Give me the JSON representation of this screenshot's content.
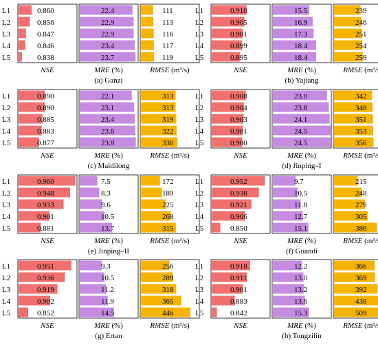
{
  "row_labels": [
    "L1",
    "L2",
    "L3",
    "L4",
    "L5"
  ],
  "metrics": [
    {
      "key": "nse",
      "label": "NSE",
      "unit": "",
      "color": "#f07070",
      "range": [
        0.83,
        0.962
      ]
    },
    {
      "key": "mre",
      "label": "MRE",
      "unit": "(%)",
      "color": "#c48be0",
      "range": [
        0,
        24.5
      ]
    },
    {
      "key": "rmse",
      "label": "RMSE",
      "unit": "(m³/s)",
      "color": "#f5b400",
      "range": [
        0,
        0
      ]
    }
  ],
  "chart_data": [
    {
      "type": "bar",
      "title": "(a) Ganzi",
      "categories": [
        "L1",
        "L2",
        "L3",
        "L4",
        "L5"
      ],
      "series": [
        {
          "name": "NSE",
          "values": [
            "0.860",
            "0.856",
            "0.847",
            "0.846",
            "0.838"
          ]
        },
        {
          "name": "MRE (%)",
          "values": [
            "22.4",
            "22.9",
            "22.9",
            "23.4",
            "23.7"
          ]
        },
        {
          "name": "RMSE (m³/s)",
          "values": [
            "111",
            "113",
            "116",
            "117",
            "119"
          ]
        }
      ]
    },
    {
      "type": "bar",
      "title": "(b) Yajiang",
      "categories": [
        "L1",
        "L2",
        "L3",
        "L4",
        "L5"
      ],
      "series": [
        {
          "name": "NSE",
          "values": [
            "0.910",
            "0.905",
            "0.901",
            "0.899",
            "0.895"
          ]
        },
        {
          "name": "MRE (%)",
          "values": [
            "15.5",
            "16.9",
            "17.3",
            "18.4",
            "18.4"
          ]
        },
        {
          "name": "RMSE (m³/s)",
          "values": [
            "239",
            "246",
            "251",
            "254",
            "259"
          ]
        }
      ]
    },
    {
      "type": "bar",
      "title": "(c) Maidilong",
      "categories": [
        "L1",
        "L2",
        "L3",
        "L4",
        "L5"
      ],
      "series": [
        {
          "name": "NSE",
          "values": [
            "0.890",
            "0.890",
            "0.885",
            "0.883",
            "0.877"
          ]
        },
        {
          "name": "MRE (%)",
          "values": [
            "22.1",
            "23.1",
            "23.4",
            "23.6",
            "23.8"
          ]
        },
        {
          "name": "RMSE (m³/s)",
          "values": [
            "313",
            "313",
            "319",
            "322",
            "330"
          ]
        }
      ]
    },
    {
      "type": "bar",
      "title": "(d) Jinping–I",
      "categories": [
        "L1",
        "L2",
        "L3",
        "L4",
        "L5"
      ],
      "series": [
        {
          "name": "NSE",
          "values": [
            "0.908",
            "0.904",
            "0.903",
            "0.901",
            "0.900"
          ]
        },
        {
          "name": "MRE (%)",
          "values": [
            "23.0",
            "23.8",
            "24.1",
            "24.5",
            "24.5"
          ]
        },
        {
          "name": "RMSE (m³/s)",
          "values": [
            "342",
            "348",
            "351",
            "353",
            "356"
          ]
        }
      ]
    },
    {
      "type": "bar",
      "title": "(e) Jinping–II",
      "categories": [
        "L1",
        "L2",
        "L3",
        "L4",
        "L5"
      ],
      "series": [
        {
          "name": "NSE",
          "values": [
            "0.960",
            "0.948",
            "0.933",
            "0.901",
            "0.881"
          ]
        },
        {
          "name": "MRE (%)",
          "values": [
            "7.5",
            "8.3",
            "9.6",
            "10.5",
            "13.7"
          ]
        },
        {
          "name": "RMSE (m³/s)",
          "values": [
            "172",
            "189",
            "225",
            "268",
            "315"
          ]
        }
      ]
    },
    {
      "type": "bar",
      "title": "(f) Guandi",
      "categories": [
        "L1",
        "L2",
        "L3",
        "L4",
        "L5"
      ],
      "series": [
        {
          "name": "NSE",
          "values": [
            "0.952",
            "0.938",
            "0.921",
            "0.906",
            "0.850"
          ]
        },
        {
          "name": "MRE (%)",
          "values": [
            "9.7",
            "10.5",
            "11.8",
            "12.7",
            "15.1"
          ]
        },
        {
          "name": "RMSE (m³/s)",
          "values": [
            "215",
            "248",
            "279",
            "305",
            "386"
          ]
        }
      ]
    },
    {
      "type": "bar",
      "title": "(g) Ertan",
      "categories": [
        "L1",
        "L2",
        "L3",
        "L4",
        "L5"
      ],
      "series": [
        {
          "name": "NSE",
          "values": [
            "0.951",
            "0.936",
            "0.919",
            "0.902",
            "0.852"
          ]
        },
        {
          "name": "MRE (%)",
          "values": [
            "9.3",
            "10.5",
            "11.2",
            "11.9",
            "14.5"
          ]
        },
        {
          "name": "RMSE (m³/s)",
          "values": [
            "256",
            "289",
            "318",
            "365",
            "446"
          ]
        }
      ]
    },
    {
      "type": "bar",
      "title": "(h) Tongzilin",
      "categories": [
        "L1",
        "L2",
        "L3",
        "L4",
        "L5"
      ],
      "series": [
        {
          "name": "NSE",
          "values": [
            "0.918",
            "0.911",
            "0.901",
            "0.883",
            "0.842"
          ]
        },
        {
          "name": "MRE (%)",
          "values": [
            "12.2",
            "13.0",
            "13.2",
            "13.6",
            "15.3"
          ]
        },
        {
          "name": "RMSE (m³/s)",
          "values": [
            "366",
            "369",
            "392",
            "438",
            "509"
          ]
        }
      ]
    }
  ]
}
